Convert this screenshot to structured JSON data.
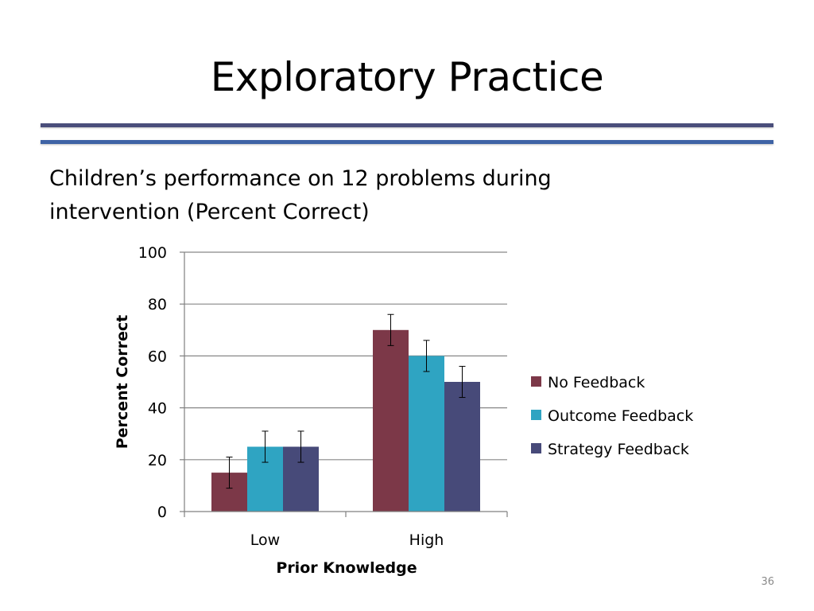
{
  "slide": {
    "title": "Exploratory Practice",
    "subtitle_line1": "Children’s performance on 12 problems during",
    "subtitle_line2": "intervention (Percent Correct)",
    "page_number": "36"
  },
  "colors": {
    "rule_top": "#4a4e7a",
    "rule_bottom": "#3f63a5",
    "grid": "#878787",
    "axis": "#808080"
  },
  "chart_data": {
    "type": "bar",
    "categories": [
      "Low",
      "High"
    ],
    "series": [
      {
        "name": "No Feedback",
        "color": "#7c3848",
        "values": [
          15,
          70
        ],
        "errors": [
          6,
          6
        ]
      },
      {
        "name": "Outcome Feedback",
        "color": "#2fa4c2",
        "values": [
          25,
          60
        ],
        "errors": [
          6,
          6
        ]
      },
      {
        "name": "Strategy Feedback",
        "color": "#474a79",
        "values": [
          25,
          50
        ],
        "errors": [
          6,
          6
        ]
      }
    ],
    "xlabel": "Prior Knowledge",
    "ylabel": "Percent Correct",
    "ylim": [
      0,
      100
    ],
    "yticks": [
      0,
      20,
      40,
      60,
      80,
      100
    ],
    "ytick_labels": [
      "0",
      "20",
      "40",
      "60",
      "80",
      "100"
    ],
    "grid": true,
    "legend": "right"
  }
}
